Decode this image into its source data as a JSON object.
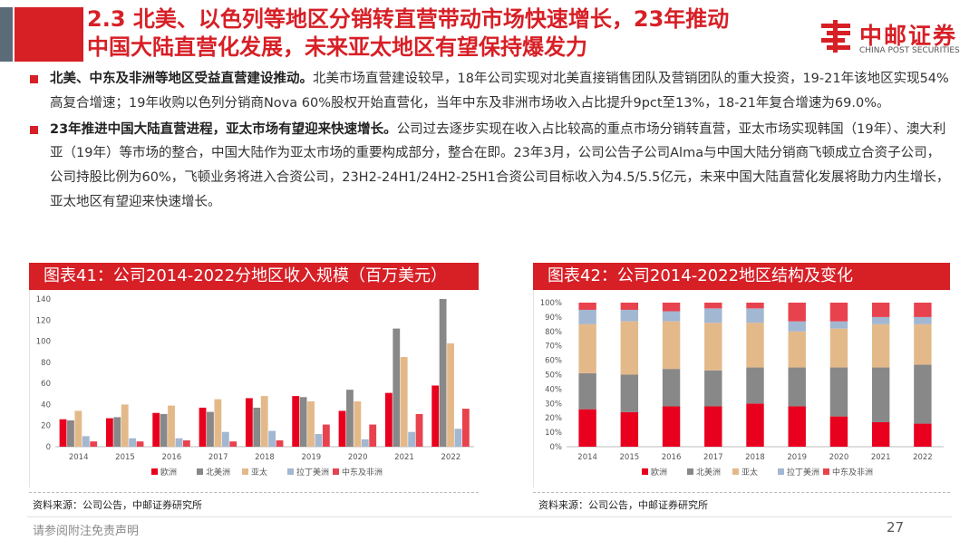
{
  "header": {
    "title_line1": "2.3 北美、以色列等地区分销转直营带动市场快速增长，23年推动",
    "title_line2": "中国大陆直营化发展，未来亚太地区有望保持爆发力",
    "logo_cn": "中邮证券",
    "logo_en": "CHINA POST SECURITIES",
    "accent_color": "#d71f26"
  },
  "bullets": [
    {
      "bold": "北美、中东及非洲等地区受益直营建设推动。",
      "text": "北美市场直营建设较早，18年公司实现对北美直接销售团队及营销团队的重大投资，19-21年该地区实现54%高复合增速；19年收购以色列分销商Nova 60%股权开始直营化，当年中东及非洲市场收入占比提升9pct至13%，18-21年复合增速为69.0%。"
    },
    {
      "bold": "23年推进中国大陆直营进程，亚太市场有望迎来快速增长。",
      "text": "公司过去逐步实现在收入占比较高的重点市场分销转直营，亚太市场实现韩国（19年）、澳大利亚（19年）等市场的整合，中国大陆作为亚太市场的重要构成部分，整合在即。23年3月，公司公告子公司Alma与中国大陆分销商飞顿成立合资子公司，公司持股比例为60%，飞顿业务将进入合资公司，23H2-24H1/24H2-25H1合资公司目标收入为4.5/5.5亿元，未来中国大陆直营化发展将助力内生增长，亚太地区有望迎来快速增长。"
    }
  ],
  "chart_data": [
    {
      "type": "bar",
      "title": "图表41：公司2014-2022分地区收入规模（百万美元）",
      "categories": [
        "2014",
        "2015",
        "2016",
        "2017",
        "2018",
        "2019",
        "2020",
        "2021",
        "2022"
      ],
      "ylim": [
        0,
        140
      ],
      "yticks": [
        "0",
        "20",
        "40",
        "60",
        "80",
        "100",
        "120",
        "140"
      ],
      "series": [
        {
          "name": "欧洲",
          "color": "#e8001e",
          "values": [
            26,
            27,
            32,
            37,
            46,
            48,
            34,
            51,
            58
          ]
        },
        {
          "name": "北美洲",
          "color": "#888888",
          "values": [
            25,
            28,
            31,
            33,
            37,
            47,
            54,
            112,
            140
          ]
        },
        {
          "name": "亚太",
          "color": "#e4b98a",
          "values": [
            34,
            40,
            39,
            45,
            48,
            43,
            43,
            85,
            98
          ]
        },
        {
          "name": "拉丁美洲",
          "color": "#a2b7d1",
          "values": [
            10,
            8,
            8,
            14,
            15,
            12,
            7,
            14,
            17
          ]
        },
        {
          "name": "中东及非洲",
          "color": "#e8424f",
          "values": [
            5,
            5,
            6,
            5,
            6,
            21,
            21,
            31,
            36
          ]
        }
      ],
      "legend_position": "bottom",
      "source": "资料来源：公司公告，中邮证券研究所"
    },
    {
      "type": "bar",
      "stacked": true,
      "title": "图表42：公司2014-2022地区结构及变化",
      "categories": [
        "2014",
        "2015",
        "2016",
        "2017",
        "2018",
        "2019",
        "2020",
        "2021",
        "2022"
      ],
      "ylim": [
        0,
        100
      ],
      "yticks": [
        "0%",
        "10%",
        "20%",
        "30%",
        "40%",
        "50%",
        "60%",
        "70%",
        "80%",
        "90%",
        "100%"
      ],
      "series": [
        {
          "name": "欧洲",
          "color": "#e8001e",
          "values": [
            26,
            24,
            28,
            28,
            30,
            28,
            21,
            17,
            16
          ]
        },
        {
          "name": "北美洲",
          "color": "#888888",
          "values": [
            25,
            26,
            26,
            25,
            25,
            27,
            34,
            38,
            41
          ]
        },
        {
          "name": "亚太",
          "color": "#e4b98a",
          "values": [
            34,
            37,
            33,
            33,
            31,
            25,
            27,
            30,
            28
          ]
        },
        {
          "name": "拉丁美洲",
          "color": "#a2b7d1",
          "values": [
            10,
            8,
            7,
            10,
            10,
            7,
            5,
            5,
            5
          ]
        },
        {
          "name": "中东及非洲",
          "color": "#e8424f",
          "values": [
            5,
            5,
            6,
            4,
            4,
            13,
            13,
            10,
            10
          ]
        }
      ],
      "legend_position": "bottom",
      "source": "资料来源：公司公告，中邮证券研究所"
    }
  ],
  "footer": {
    "disclaimer": "请参阅附注免责声明",
    "page": "27"
  }
}
